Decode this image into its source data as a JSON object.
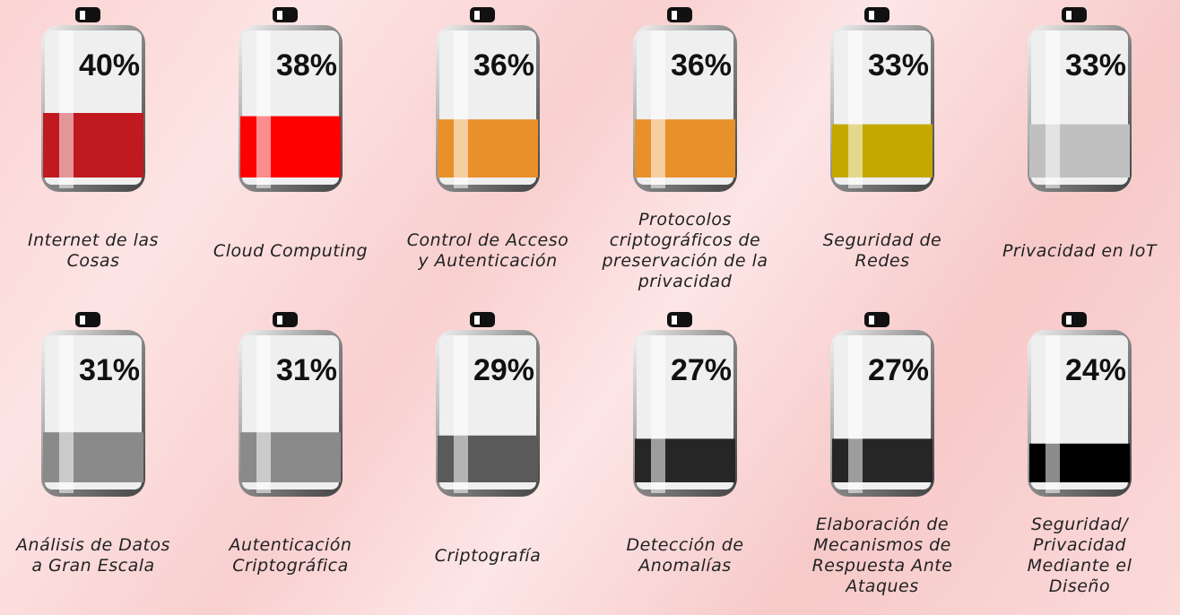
{
  "chart_data": {
    "type": "battery",
    "categories": [
      "Internet de las Cosas",
      "Cloud Computing",
      "Control de Acceso y Autenticación",
      "Protocolos criptográficos de preservación de la privacidad",
      "Seguridad de Redes",
      "Privacidad en IoT",
      "Análisis de Datos a Gran Escala",
      "Autenticación Criptográfica",
      "Criptografía",
      "Detección de Anomalías",
      "Elaboración de Mecanismos de Respuesta Ante Ataques",
      "Seguridad/ Privacidad Mediante el Diseño"
    ],
    "values": [
      40,
      38,
      36,
      36,
      33,
      33,
      31,
      31,
      29,
      27,
      27,
      24
    ],
    "value_labels": [
      "40%",
      "38%",
      "36%",
      "36%",
      "33%",
      "33%",
      "31%",
      "31%",
      "29%",
      "27%",
      "27%",
      "24%"
    ],
    "colors": [
      "#c0191f",
      "#ff0000",
      "#e8902a",
      "#e8902a",
      "#c4a800",
      "#c0c0c0",
      "#8a8a8a",
      "#8a8a8a",
      "#5a5a5a",
      "#262626",
      "#262626",
      "#000000"
    ]
  }
}
